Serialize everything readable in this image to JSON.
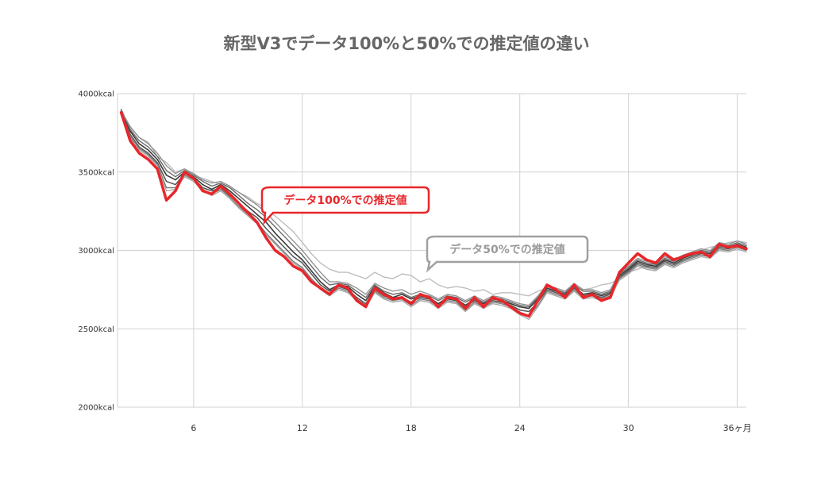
{
  "colors": {
    "background": "#ffffff",
    "grid": "#d2d2d2",
    "highlight": "#e8262a",
    "gray_lines": "#444444",
    "gray_light": "#9a9a9a",
    "title": "#666666"
  },
  "chart_data": {
    "type": "line",
    "title": "新型V3でデータ100%と50%での推定値の違い",
    "xlabel": "",
    "ylabel": "",
    "xlim": [
      1.8,
      36.5
    ],
    "ylim": [
      2000,
      4000
    ],
    "grid": true,
    "yticks": [
      {
        "value": 4000,
        "label": "4000kcal"
      },
      {
        "value": 3500,
        "label": "3500kcal"
      },
      {
        "value": 3000,
        "label": "3000kcal"
      },
      {
        "value": 2500,
        "label": "2500kcal"
      },
      {
        "value": 2000,
        "label": "2000kcal"
      }
    ],
    "xticks": [
      {
        "value": 6,
        "label": "6"
      },
      {
        "value": 12,
        "label": "12"
      },
      {
        "value": 18,
        "label": "18"
      },
      {
        "value": 24,
        "label": "24"
      },
      {
        "value": 30,
        "label": "30"
      },
      {
        "value": 36,
        "label": "36ヶ月"
      }
    ],
    "annotations": [
      {
        "text": "データ100%での推定値",
        "series": "100%",
        "style": "red-callout"
      },
      {
        "text": "データ50%での推定値",
        "series": "50%",
        "style": "gray-callout"
      }
    ],
    "series": [
      {
        "key": "100%",
        "color": "#e8262a",
        "width": 3.5,
        "x": [
          2,
          2.5,
          3,
          3.5,
          4,
          4.5,
          5,
          5.5,
          6,
          6.5,
          7,
          7.5,
          8,
          8.5,
          9,
          9.5,
          10,
          10.5,
          11,
          11.5,
          12,
          12.5,
          13,
          13.5,
          14,
          14.5,
          15,
          15.5,
          16,
          16.5,
          17,
          17.5,
          18,
          18.5,
          19,
          19.5,
          20,
          20.5,
          21,
          21.5,
          22,
          22.5,
          23,
          23.5,
          24,
          24.5,
          25,
          25.5,
          26,
          26.5,
          27,
          27.5,
          28,
          28.5,
          29,
          29.5,
          30,
          30.5,
          31,
          31.5,
          32,
          32.5,
          33,
          33.5,
          34,
          34.5,
          35,
          35.5,
          36,
          36.5
        ],
        "y": [
          3880,
          3700,
          3620,
          3580,
          3520,
          3320,
          3380,
          3500,
          3460,
          3380,
          3360,
          3410,
          3360,
          3300,
          3240,
          3180,
          3080,
          3000,
          2960,
          2900,
          2870,
          2800,
          2760,
          2720,
          2780,
          2760,
          2680,
          2640,
          2760,
          2720,
          2690,
          2700,
          2660,
          2720,
          2700,
          2640,
          2700,
          2690,
          2630,
          2700,
          2640,
          2700,
          2680,
          2640,
          2600,
          2580,
          2680,
          2780,
          2750,
          2700,
          2780,
          2700,
          2720,
          2680,
          2700,
          2860,
          2920,
          2980,
          2940,
          2920,
          2980,
          2940,
          2960,
          2980,
          2990,
          2960,
          3040,
          3020,
          3030,
          3010
        ]
      },
      {
        "key": "50%",
        "color": "#bdbdbd",
        "width": 1.4,
        "x": [
          2,
          2.5,
          3,
          3.5,
          4,
          4.5,
          5,
          5.5,
          6,
          6.5,
          7,
          7.5,
          8,
          8.5,
          9,
          9.5,
          10,
          10.5,
          11,
          11.5,
          12,
          12.5,
          13,
          13.5,
          14,
          14.5,
          15,
          15.5,
          16,
          16.5,
          17,
          17.5,
          18,
          18.5,
          19,
          19.5,
          20,
          20.5,
          21,
          21.5,
          22,
          22.5,
          23,
          23.5,
          24,
          24.5,
          25,
          25.5,
          26,
          26.5,
          27,
          27.5,
          28,
          28.5,
          29,
          29.5,
          30,
          30.5,
          31,
          31.5,
          32,
          32.5,
          33,
          33.5,
          34,
          34.5,
          35,
          35.5,
          36,
          36.5
        ],
        "y": [
          3900,
          3780,
          3720,
          3690,
          3600,
          3560,
          3500,
          3520,
          3480,
          3460,
          3440,
          3420,
          3400,
          3370,
          3340,
          3300,
          3270,
          3220,
          3170,
          3120,
          3050,
          2980,
          2920,
          2880,
          2860,
          2860,
          2840,
          2820,
          2860,
          2830,
          2820,
          2850,
          2840,
          2800,
          2820,
          2780,
          2760,
          2770,
          2760,
          2740,
          2750,
          2720,
          2730,
          2730,
          2720,
          2710,
          2740,
          2760,
          2740,
          2730,
          2760,
          2750,
          2760,
          2780,
          2790,
          2820,
          2860,
          2880,
          2900,
          2920,
          2930,
          2950,
          2960,
          2980,
          3000,
          3020,
          3030,
          3050,
          3060,
          3050
        ]
      },
      {
        "key": "g1",
        "color": "#3a3a3a",
        "width": 1.6,
        "x": [
          2,
          2.5,
          3,
          3.5,
          4,
          4.5,
          5,
          5.5,
          6,
          6.5,
          7,
          7.5,
          8,
          8.5,
          9,
          9.5,
          10,
          10.5,
          11,
          11.5,
          12,
          12.5,
          13,
          13.5,
          14,
          14.5,
          15,
          15.5,
          16,
          16.5,
          17,
          17.5,
          18,
          18.5,
          19,
          19.5,
          20,
          20.5,
          21,
          21.5,
          22,
          22.5,
          23,
          23.5,
          24,
          24.5,
          25,
          25.5,
          26,
          26.5,
          27,
          27.5,
          28,
          28.5,
          29,
          29.5,
          30,
          30.5,
          31,
          31.5,
          32,
          32.5,
          33,
          33.5,
          34,
          34.5,
          35,
          35.5,
          36,
          36.5
        ],
        "y": [
          3890,
          3760,
          3680,
          3640,
          3580,
          3480,
          3450,
          3500,
          3470,
          3420,
          3390,
          3420,
          3380,
          3330,
          3280,
          3230,
          3180,
          3110,
          3050,
          2990,
          2940,
          2870,
          2800,
          2750,
          2780,
          2770,
          2720,
          2680,
          2770,
          2730,
          2700,
          2720,
          2690,
          2710,
          2700,
          2660,
          2700,
          2690,
          2650,
          2690,
          2660,
          2690,
          2680,
          2660,
          2640,
          2630,
          2690,
          2760,
          2740,
          2720,
          2770,
          2720,
          2730,
          2710,
          2730,
          2840,
          2880,
          2930,
          2910,
          2900,
          2940,
          2920,
          2950,
          2970,
          2990,
          2980,
          3030,
          3020,
          3040,
          3020
        ]
      },
      {
        "key": "g2",
        "color": "#555555",
        "width": 1.5,
        "x": [
          2,
          2.5,
          3,
          3.5,
          4,
          4.5,
          5,
          5.5,
          6,
          6.5,
          7,
          7.5,
          8,
          8.5,
          9,
          9.5,
          10,
          10.5,
          11,
          11.5,
          12,
          12.5,
          13,
          13.5,
          14,
          14.5,
          15,
          15.5,
          16,
          16.5,
          17,
          17.5,
          18,
          18.5,
          19,
          19.5,
          20,
          20.5,
          21,
          21.5,
          22,
          22.5,
          23,
          23.5,
          24,
          24.5,
          25,
          25.5,
          26,
          26.5,
          27,
          27.5,
          28,
          28.5,
          29,
          29.5,
          30,
          30.5,
          31,
          31.5,
          32,
          32.5,
          33,
          33.5,
          34,
          34.5,
          35,
          35.5,
          36,
          36.5
        ],
        "y": [
          3880,
          3740,
          3660,
          3620,
          3560,
          3440,
          3420,
          3490,
          3460,
          3400,
          3380,
          3400,
          3350,
          3300,
          3250,
          3210,
          3140,
          3080,
          3020,
          2960,
          2920,
          2850,
          2780,
          2740,
          2770,
          2750,
          2700,
          2660,
          2750,
          2710,
          2690,
          2700,
          2670,
          2700,
          2690,
          2650,
          2690,
          2680,
          2640,
          2680,
          2650,
          2680,
          2670,
          2650,
          2620,
          2610,
          2670,
          2750,
          2730,
          2710,
          2760,
          2710,
          2720,
          2700,
          2720,
          2830,
          2870,
          2920,
          2900,
          2890,
          2930,
          2910,
          2940,
          2960,
          2980,
          2970,
          3020,
          3010,
          3030,
          3010
        ]
      },
      {
        "key": "g3",
        "color": "#6a6a6a",
        "width": 1.4,
        "x": [
          2,
          2.5,
          3,
          3.5,
          4,
          4.5,
          5,
          5.5,
          6,
          6.5,
          7,
          7.5,
          8,
          8.5,
          9,
          9.5,
          10,
          10.5,
          11,
          11.5,
          12,
          12.5,
          13,
          13.5,
          14,
          14.5,
          15,
          15.5,
          16,
          16.5,
          17,
          17.5,
          18,
          18.5,
          19,
          19.5,
          20,
          20.5,
          21,
          21.5,
          22,
          22.5,
          23,
          23.5,
          24,
          24.5,
          25,
          25.5,
          26,
          26.5,
          27,
          27.5,
          28,
          28.5,
          29,
          29.5,
          30,
          30.5,
          31,
          31.5,
          32,
          32.5,
          33,
          33.5,
          34,
          34.5,
          35,
          35.5,
          36,
          36.5
        ],
        "y": [
          3900,
          3770,
          3700,
          3660,
          3600,
          3510,
          3470,
          3510,
          3480,
          3440,
          3410,
          3430,
          3400,
          3350,
          3300,
          3260,
          3210,
          3150,
          3090,
          3030,
          2970,
          2900,
          2830,
          2780,
          2790,
          2780,
          2740,
          2700,
          2780,
          2740,
          2720,
          2730,
          2700,
          2720,
          2710,
          2680,
          2710,
          2700,
          2670,
          2700,
          2670,
          2700,
          2690,
          2670,
          2650,
          2640,
          2700,
          2770,
          2750,
          2730,
          2780,
          2740,
          2740,
          2720,
          2740,
          2850,
          2890,
          2940,
          2920,
          2910,
          2950,
          2930,
          2960,
          2980,
          3000,
          2990,
          3040,
          3030,
          3050,
          3030
        ]
      },
      {
        "key": "g4",
        "color": "#7c7c7c",
        "width": 1.4,
        "x": [
          2,
          2.5,
          3,
          3.5,
          4,
          4.5,
          5,
          5.5,
          6,
          6.5,
          7,
          7.5,
          8,
          8.5,
          9,
          9.5,
          10,
          10.5,
          11,
          11.5,
          12,
          12.5,
          13,
          13.5,
          14,
          14.5,
          15,
          15.5,
          16,
          16.5,
          17,
          17.5,
          18,
          18.5,
          19,
          19.5,
          20,
          20.5,
          21,
          21.5,
          22,
          22.5,
          23,
          23.5,
          24,
          24.5,
          25,
          25.5,
          26,
          26.5,
          27,
          27.5,
          28,
          28.5,
          29,
          29.5,
          30,
          30.5,
          31,
          31.5,
          32,
          32.5,
          33,
          33.5,
          34,
          34.5,
          35,
          35.5,
          36,
          36.5
        ],
        "y": [
          3880,
          3730,
          3650,
          3610,
          3550,
          3400,
          3400,
          3480,
          3450,
          3390,
          3360,
          3390,
          3340,
          3280,
          3230,
          3180,
          3110,
          3050,
          2990,
          2930,
          2890,
          2820,
          2760,
          2720,
          2760,
          2740,
          2690,
          2650,
          2740,
          2700,
          2680,
          2690,
          2650,
          2690,
          2680,
          2640,
          2680,
          2670,
          2620,
          2670,
          2640,
          2670,
          2660,
          2640,
          2600,
          2580,
          2650,
          2740,
          2720,
          2700,
          2750,
          2700,
          2710,
          2690,
          2710,
          2820,
          2860,
          2910,
          2890,
          2880,
          2920,
          2900,
          2930,
          2950,
          2970,
          2960,
          3010,
          3000,
          3020,
          3000
        ]
      },
      {
        "key": "g5",
        "color": "#8e8e8e",
        "width": 1.3,
        "x": [
          2,
          2.5,
          3,
          3.5,
          4,
          4.5,
          5,
          5.5,
          6,
          6.5,
          7,
          7.5,
          8,
          8.5,
          9,
          9.5,
          10,
          10.5,
          11,
          11.5,
          12,
          12.5,
          13,
          13.5,
          14,
          14.5,
          15,
          15.5,
          16,
          16.5,
          17,
          17.5,
          18,
          18.5,
          19,
          19.5,
          20,
          20.5,
          21,
          21.5,
          22,
          22.5,
          23,
          23.5,
          24,
          24.5,
          25,
          25.5,
          26,
          26.5,
          27,
          27.5,
          28,
          28.5,
          29,
          29.5,
          30,
          30.5,
          31,
          31.5,
          32,
          32.5,
          33,
          33.5,
          34,
          34.5,
          35,
          35.5,
          36,
          36.5
        ],
        "y": [
          3890,
          3790,
          3720,
          3680,
          3620,
          3540,
          3490,
          3520,
          3490,
          3450,
          3430,
          3440,
          3410,
          3370,
          3330,
          3290,
          3240,
          3180,
          3120,
          3060,
          3000,
          2930,
          2860,
          2800,
          2800,
          2790,
          2760,
          2720,
          2790,
          2760,
          2740,
          2750,
          2720,
          2740,
          2720,
          2690,
          2720,
          2710,
          2680,
          2710,
          2680,
          2710,
          2700,
          2680,
          2660,
          2650,
          2710,
          2780,
          2760,
          2740,
          2790,
          2750,
          2750,
          2730,
          2750,
          2860,
          2900,
          2950,
          2930,
          2920,
          2960,
          2940,
          2970,
          2990,
          3010,
          3000,
          3050,
          3040,
          3060,
          3040
        ]
      },
      {
        "key": "g6",
        "color": "#a5a5a5",
        "width": 1.3,
        "x": [
          2,
          2.5,
          3,
          3.5,
          4,
          4.5,
          5,
          5.5,
          6,
          6.5,
          7,
          7.5,
          8,
          8.5,
          9,
          9.5,
          10,
          10.5,
          11,
          11.5,
          12,
          12.5,
          13,
          13.5,
          14,
          14.5,
          15,
          15.5,
          16,
          16.5,
          17,
          17.5,
          18,
          18.5,
          19,
          19.5,
          20,
          20.5,
          21,
          21.5,
          22,
          22.5,
          23,
          23.5,
          24,
          24.5,
          25,
          25.5,
          26,
          26.5,
          27,
          27.5,
          28,
          28.5,
          29,
          29.5,
          30,
          30.5,
          31,
          31.5,
          32,
          32.5,
          33,
          33.5,
          34,
          34.5,
          35,
          35.5,
          36,
          36.5
        ],
        "y": [
          3880,
          3720,
          3640,
          3600,
          3540,
          3380,
          3390,
          3470,
          3440,
          3380,
          3350,
          3380,
          3330,
          3270,
          3220,
          3170,
          3100,
          3040,
          2980,
          2920,
          2880,
          2810,
          2750,
          2710,
          2750,
          2730,
          2680,
          2640,
          2730,
          2690,
          2670,
          2680,
          2640,
          2680,
          2670,
          2630,
          2670,
          2660,
          2610,
          2660,
          2630,
          2660,
          2650,
          2630,
          2590,
          2560,
          2640,
          2730,
          2710,
          2690,
          2740,
          2690,
          2700,
          2680,
          2700,
          2810,
          2850,
          2900,
          2880,
          2870,
          2910,
          2890,
          2920,
          2940,
          2960,
          2950,
          3000,
          2990,
          3010,
          2990
        ]
      }
    ]
  }
}
